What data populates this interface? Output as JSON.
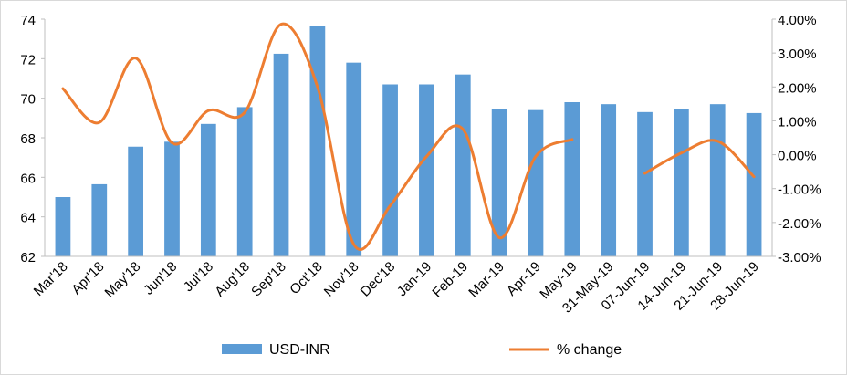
{
  "chart_data": {
    "type": "bar+line",
    "title": "",
    "xlabel": "",
    "ylabel": "",
    "categories": [
      "Mar'18",
      "Apr'18",
      "May'18",
      "Jun'18",
      "Jul'18",
      "Aug'18",
      "Sep'18",
      "Oct'18",
      "Nov'18",
      "Dec'18",
      "Jan-19",
      "Feb-19",
      "Mar-19",
      "Apr-19",
      "May-19",
      "31-May-19",
      "07-Jun-19",
      "14-Jun-19",
      "21-Jun-19",
      "28-Jun-19"
    ],
    "series": [
      {
        "name": "USD-INR",
        "type": "bar",
        "axis": "left",
        "color": "#5b9bd5",
        "values": [
          65.0,
          65.65,
          67.55,
          67.8,
          68.7,
          69.55,
          72.25,
          73.65,
          71.8,
          70.7,
          70.7,
          71.2,
          69.45,
          69.4,
          69.8,
          69.7,
          69.3,
          69.45,
          69.7,
          69.25
        ]
      },
      {
        "name": "% change",
        "type": "line",
        "axis": "right",
        "color": "#ed7d31",
        "values": [
          1.95,
          0.95,
          2.85,
          0.35,
          1.3,
          1.25,
          3.85,
          2.0,
          -2.65,
          -1.5,
          -0.05,
          0.75,
          -2.45,
          -0.05,
          0.45,
          null,
          -0.55,
          0.05,
          0.4,
          -0.65
        ]
      }
    ],
    "y_left": {
      "min": 62,
      "max": 74,
      "step": 2,
      "tick_labels": [
        "62",
        "64",
        "66",
        "68",
        "70",
        "72",
        "74"
      ]
    },
    "y_right": {
      "min": -3,
      "max": 4,
      "step": 1,
      "tick_labels": [
        "-3.00%",
        "-2.00%",
        "-1.00%",
        "0.00%",
        "1.00%",
        "2.00%",
        "3.00%",
        "4.00%"
      ]
    },
    "grid": false,
    "legend_placement": "bottom",
    "legend": [
      {
        "label": "USD-INR",
        "marker": "bar",
        "color": "#5b9bd5"
      },
      {
        "label": "% change",
        "marker": "line",
        "color": "#ed7d31"
      }
    ]
  }
}
